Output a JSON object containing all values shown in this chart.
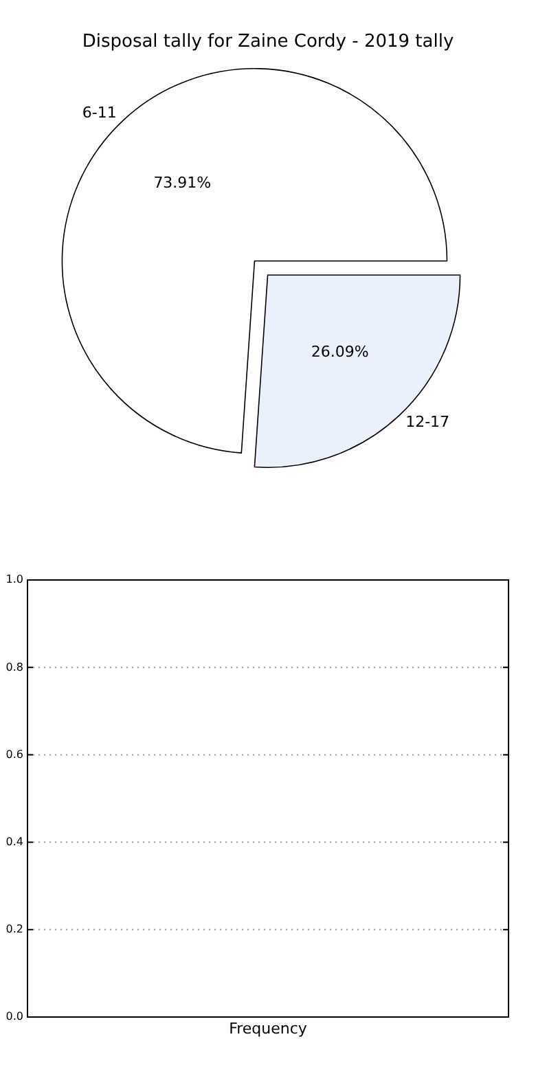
{
  "chart_data": [
    {
      "type": "pie",
      "title": "Disposal tally for Zaine Cordy - 2019 tally",
      "categories": [
        "6-11",
        "12-17"
      ],
      "values": [
        73.91,
        26.09
      ],
      "value_labels": [
        "73.91%",
        "26.09%"
      ],
      "colors": [
        "#ffffff",
        "#eaf0fc"
      ]
    },
    {
      "type": "bar",
      "categories": [
        "Frequency"
      ],
      "values": [
        null
      ],
      "ylim": [
        0,
        1
      ],
      "yticks": [
        {
          "value": 0,
          "label": "0.0"
        },
        {
          "value": 0.2,
          "label": "0.2"
        },
        {
          "value": 0.4,
          "label": "0.4"
        },
        {
          "value": 0.6,
          "label": "0.6"
        },
        {
          "value": 0.8,
          "label": "0.8"
        },
        {
          "value": 1,
          "label": "1.0"
        }
      ],
      "grid": "y"
    }
  ]
}
